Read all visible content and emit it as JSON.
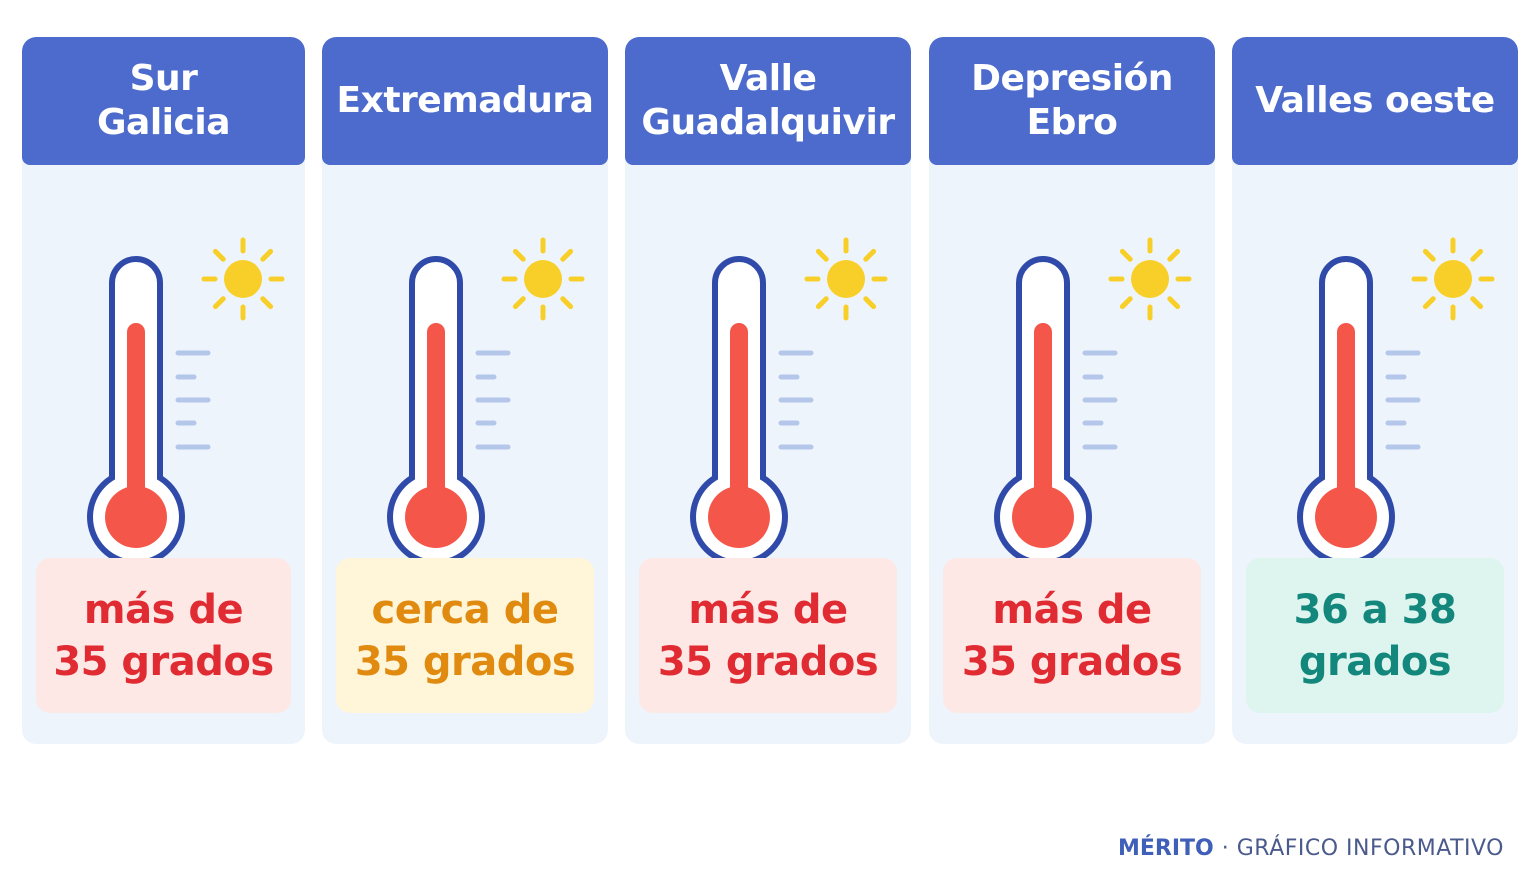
{
  "colors": {
    "header_blue": "#4c6bcc",
    "card_bg": "#eef4fc",
    "thermo_outline": "#2f4aa8",
    "mercury_red": "#f4574a",
    "sun_yellow": "#f8cf28",
    "tick_blue": "#b4c6ea"
  },
  "regions": [
    {
      "title": "Sur\nGalicia",
      "label": "más de\n35 grados",
      "label_color": "#e02b33",
      "label_bg": "#fde8e6",
      "icons": [
        "thermometer-icon",
        "sun-icon"
      ]
    },
    {
      "title": "Extremadura",
      "label": "cerca de\n35 grados",
      "label_color": "#e08a0f",
      "label_bg": "#fff5d9",
      "icons": [
        "thermometer-icon",
        "sun-icon"
      ]
    },
    {
      "title": "Valle\nGuadalquivir",
      "label": "más de\n35 grados",
      "label_color": "#e02b33",
      "label_bg": "#fde8e6",
      "icons": [
        "thermometer-icon",
        "sun-icon"
      ]
    },
    {
      "title": "Depresión\nEbro",
      "label": "más de\n35 grados",
      "label_color": "#e02b33",
      "label_bg": "#fde8e6",
      "icons": [
        "thermometer-icon",
        "sun-icon"
      ]
    },
    {
      "title": "Valles oeste",
      "label": "36 a 38\ngrados",
      "label_color": "#13877b",
      "label_bg": "#ddf4ef",
      "icons": [
        "thermometer-icon",
        "sun-icon"
      ]
    }
  ],
  "footer": {
    "brand": "MÉRITO",
    "separator": "·",
    "subtitle": "GRÁFICO INFORMATIVO"
  }
}
